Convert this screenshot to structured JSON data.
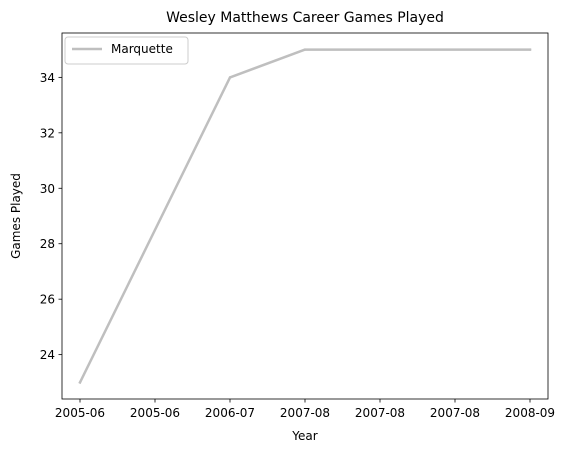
{
  "chart_data": {
    "type": "line",
    "title": "Wesley Matthews Career Games Played",
    "xlabel": "Year",
    "ylabel": "Games Played",
    "x_ticks": [
      "2005-06",
      "2005-06",
      "2006-07",
      "2007-08",
      "2007-08",
      "2007-08",
      "2008-09"
    ],
    "y_ticks": [
      24,
      26,
      28,
      30,
      32,
      34
    ],
    "ylim": [
      22.4,
      35.6
    ],
    "grid": false,
    "legend_position": "upper-left",
    "series": [
      {
        "name": "Marquette",
        "color": "#bfbfbf",
        "points": [
          {
            "x": "2005-06",
            "y": 23
          },
          {
            "x": "2006-07",
            "y": 34
          },
          {
            "x": "2007-08",
            "y": 35
          },
          {
            "x": "2008-09",
            "y": 35
          }
        ]
      }
    ]
  }
}
